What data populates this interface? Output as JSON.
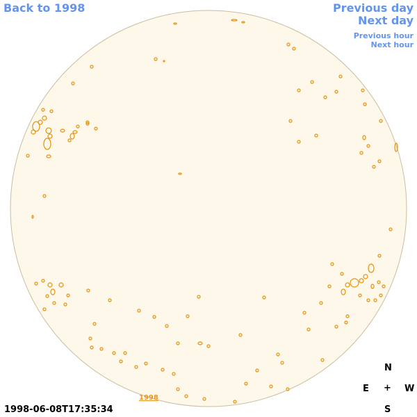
{
  "nav": {
    "back": "Back to 1998",
    "previous_day": "Previous day",
    "next_day": "Next day",
    "previous_hour": "Previous hour",
    "next_hour": "Next hour"
  },
  "timestamp": "1998-06-08T17:35:34",
  "year_link": "1998",
  "compass": {
    "north": "N",
    "east": "E",
    "center": "+",
    "west": "W",
    "south": "S"
  }
}
